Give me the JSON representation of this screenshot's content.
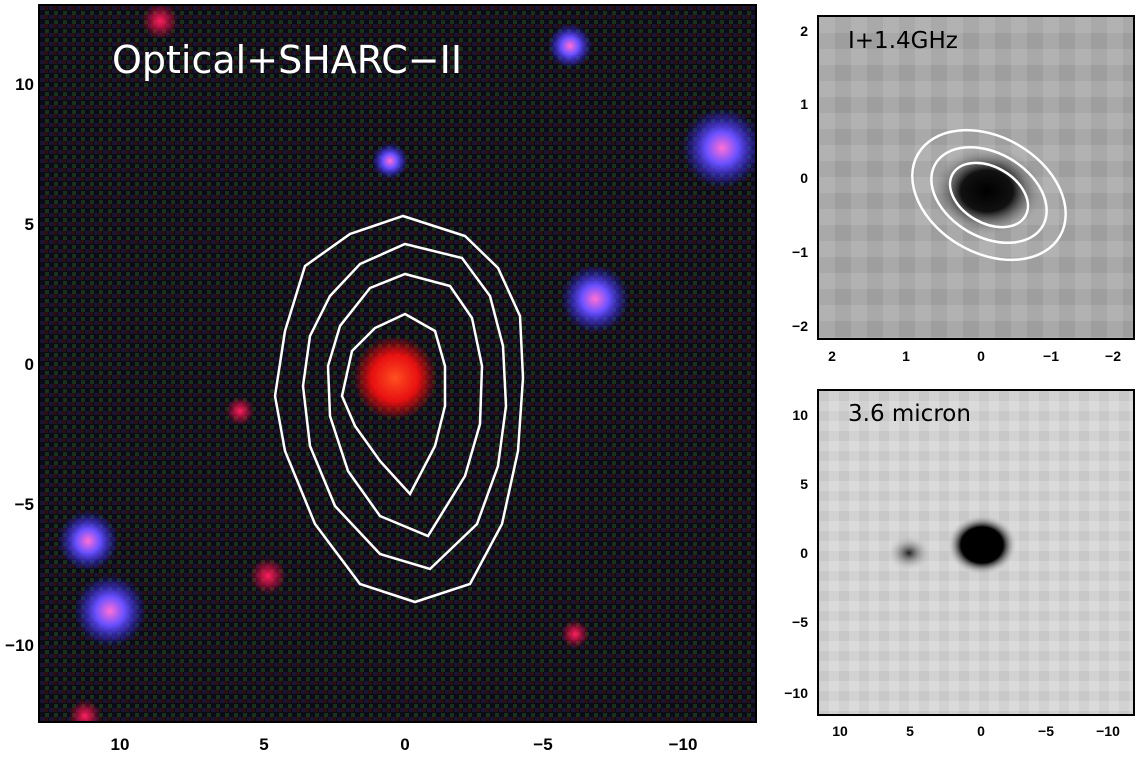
{
  "panels": {
    "main": {
      "title": "Optical+SHARC−II",
      "x_ticks": [
        "10",
        "5",
        "0",
        "−5",
        "−10"
      ],
      "y_ticks": [
        "10",
        "5",
        "0",
        "−5",
        "−10"
      ]
    },
    "radio": {
      "title": "I+1.4GHz",
      "x_ticks": [
        "2",
        "1",
        "0",
        "−1",
        "−2"
      ],
      "y_ticks": [
        "2",
        "1",
        "0",
        "−1",
        "−2"
      ]
    },
    "ir": {
      "title": "3.6 micron",
      "x_ticks": [
        "10",
        "5",
        "0",
        "−5",
        "−10"
      ],
      "y_ticks": [
        "10",
        "5",
        "0",
        "−5",
        "−10"
      ]
    }
  },
  "colors": {
    "contour": "#ffffff",
    "axis": "#000000",
    "main_background": "#0a0a1a",
    "source_red": "#ff2a10",
    "source_blue": "#4040ff"
  }
}
